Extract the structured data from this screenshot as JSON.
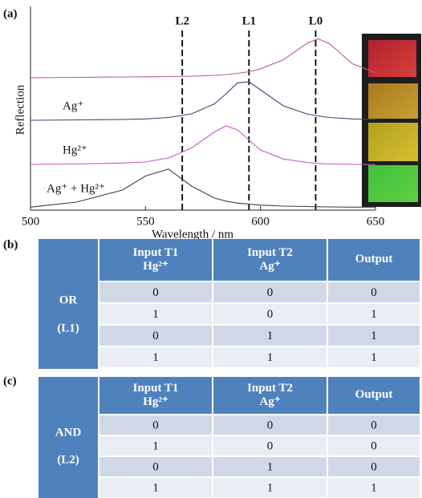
{
  "chart_data": {
    "type": "line",
    "panel_label": "(a)",
    "xlabel": "Wavelength / nm",
    "ylabel": "Reflection",
    "x": [
      500,
      520,
      540,
      550,
      560,
      570,
      580,
      585,
      590,
      595,
      600,
      610,
      620,
      625,
      630,
      640,
      650
    ],
    "xlim": [
      500,
      650
    ],
    "xticks": [
      500,
      550,
      600,
      650
    ],
    "ylim": [
      0,
      10
    ],
    "reference_lines": [
      {
        "x": 566,
        "label": "L2"
      },
      {
        "x": 595,
        "label": "L1"
      },
      {
        "x": 624,
        "label": "L0"
      }
    ],
    "series": [
      {
        "color": "#c0606e",
        "values": [
          6.6,
          6.62,
          6.64,
          6.65,
          6.66,
          6.68,
          6.72,
          6.76,
          6.82,
          6.9,
          7.05,
          7.5,
          8.3,
          8.55,
          8.3,
          7.3,
          6.85
        ]
      },
      {
        "name": "Ag⁺",
        "color": "#3c4670",
        "values": [
          4.48,
          4.5,
          4.52,
          4.55,
          4.62,
          4.8,
          5.3,
          5.8,
          6.35,
          6.4,
          6.0,
          5.2,
          4.8,
          4.7,
          4.62,
          4.55,
          4.52
        ]
      },
      {
        "name": "Hg²⁺",
        "color": "#c05cc0",
        "values": [
          2.28,
          2.3,
          2.35,
          2.4,
          2.6,
          3.1,
          3.9,
          4.2,
          4.0,
          3.5,
          3.0,
          2.55,
          2.38,
          2.33,
          2.3,
          2.28,
          2.27
        ]
      },
      {
        "name": "Ag⁺ + Hg²⁺",
        "color": "#404040",
        "values": [
          0.15,
          0.4,
          1.0,
          1.7,
          2.05,
          1.2,
          0.6,
          0.45,
          0.35,
          0.3,
          0.25,
          0.2,
          0.18,
          0.17,
          0.16,
          0.15,
          0.15
        ]
      }
    ]
  },
  "tables": [
    {
      "label": "(b)",
      "gate": [
        "OR",
        "(L1)"
      ],
      "header": [
        [
          "Input  T1",
          "Hg²⁺"
        ],
        [
          "Input T2",
          "Ag⁺"
        ],
        [
          "Output"
        ]
      ],
      "rows": [
        [
          0,
          0,
          0
        ],
        [
          1,
          0,
          1
        ],
        [
          0,
          1,
          1
        ],
        [
          1,
          1,
          1
        ]
      ]
    },
    {
      "label": "(c)",
      "gate": [
        "AND",
        "(L2)"
      ],
      "header": [
        [
          "Input  T1",
          "Hg²⁺"
        ],
        [
          "Input T2",
          "Ag⁺"
        ],
        [
          "Output"
        ]
      ],
      "rows": [
        [
          0,
          0,
          0
        ],
        [
          1,
          0,
          0
        ],
        [
          0,
          1,
          0
        ],
        [
          1,
          1,
          1
        ]
      ]
    }
  ]
}
